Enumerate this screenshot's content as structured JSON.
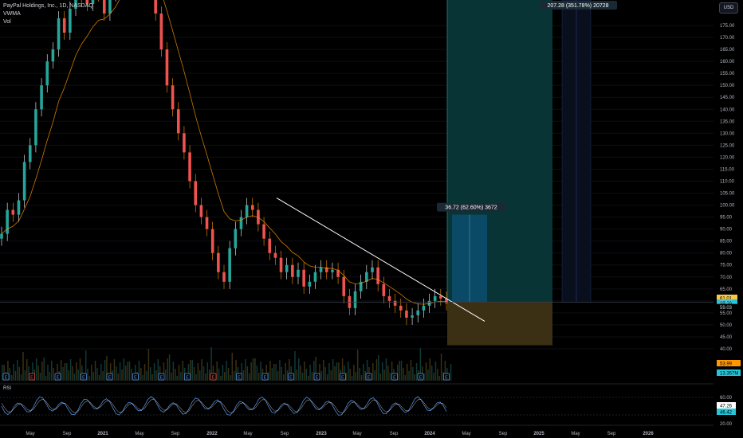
{
  "legend": {
    "symbol": "PayPal Holdings, Inc., 1D, NASDAQ",
    "vwma_label": "VWMA",
    "vol_label": "Vol",
    "rsi_label": "RSI"
  },
  "currency": "USD",
  "colors": {
    "up": "#26a69a",
    "down": "#ef5350",
    "wick_up": "#ffffff",
    "wick_down": "#ff9800",
    "vwma": "#ff9800",
    "trendline": "#ffffff",
    "long_profit": "#0a3a3c",
    "long_loss": "#3b3014",
    "rsi_a": "#5b9cf6",
    "rsi_b": "#ffffff",
    "price_line": "#3a3e4a"
  },
  "chart_data": {
    "type": "candlestick",
    "y_axis_ticks": [
      175,
      170,
      165,
      160,
      155,
      150,
      145,
      140,
      135,
      130,
      125,
      120,
      115,
      110,
      105,
      100,
      95,
      90,
      85,
      80,
      75,
      70,
      65,
      60,
      55,
      50,
      45,
      40
    ],
    "x_axis_ticks": [
      "May",
      "Sep",
      "2021",
      "May",
      "Sep",
      "2022",
      "May",
      "Sep",
      "2023",
      "May",
      "Sep",
      "2024",
      "May",
      "Sep",
      "2025",
      "May",
      "Sep",
      "2026"
    ],
    "price_labels": [
      {
        "value": "61.01",
        "color": "#f7c948",
        "text_color": "#000000"
      },
      {
        "value": "59.16",
        "color": "#26c6da",
        "text_color": "#000000"
      },
      {
        "value": "59.03",
        "color": "#000000",
        "text_color": "#d1d4dc"
      }
    ],
    "volume_labels": [
      {
        "value": "53.99",
        "color": "#ff9800",
        "text_color": "#000000"
      },
      {
        "value": "13.357M",
        "color": "#26c6da",
        "text_color": "#000000"
      }
    ],
    "rsi_ticks": [
      "60.00",
      "20.00"
    ],
    "rsi_labels": [
      {
        "value": "47.26",
        "color": "#ffffff",
        "text_color": "#000000"
      },
      {
        "value": "46.42",
        "color": "#26c6da",
        "text_color": "#000000"
      }
    ],
    "annotations": [
      {
        "text": "207.28 (351.78%) 20728"
      },
      {
        "text": "36.72 (62.60%) 3672"
      }
    ],
    "earnings_markers": [
      "E",
      "E",
      "E",
      "E",
      "E",
      "E",
      "E",
      "E",
      "E",
      "E",
      "E",
      "E",
      "E",
      "E",
      "E",
      "E",
      "E",
      "E"
    ],
    "series": [
      {
        "close": [
          88,
          98,
          96,
          102,
          118,
          125,
          140,
          150,
          160,
          165,
          178,
          172,
          182,
          190,
          186,
          184,
          190,
          188,
          180,
          188,
          195,
          205,
          215,
          220,
          210,
          200,
          190,
          180,
          165,
          150,
          140,
          130,
          122,
          110,
          100,
          95,
          90,
          80,
          72,
          68,
          82,
          90,
          95,
          100,
          98,
          92,
          86,
          80,
          78,
          72,
          75,
          70,
          73,
          66,
          68,
          72,
          74,
          72,
          73,
          70,
          62,
          57,
          64,
          68,
          72,
          74,
          67,
          62,
          60,
          58,
          56,
          53,
          54,
          56,
          58,
          60,
          62,
          61,
          59
        ]
      }
    ]
  }
}
